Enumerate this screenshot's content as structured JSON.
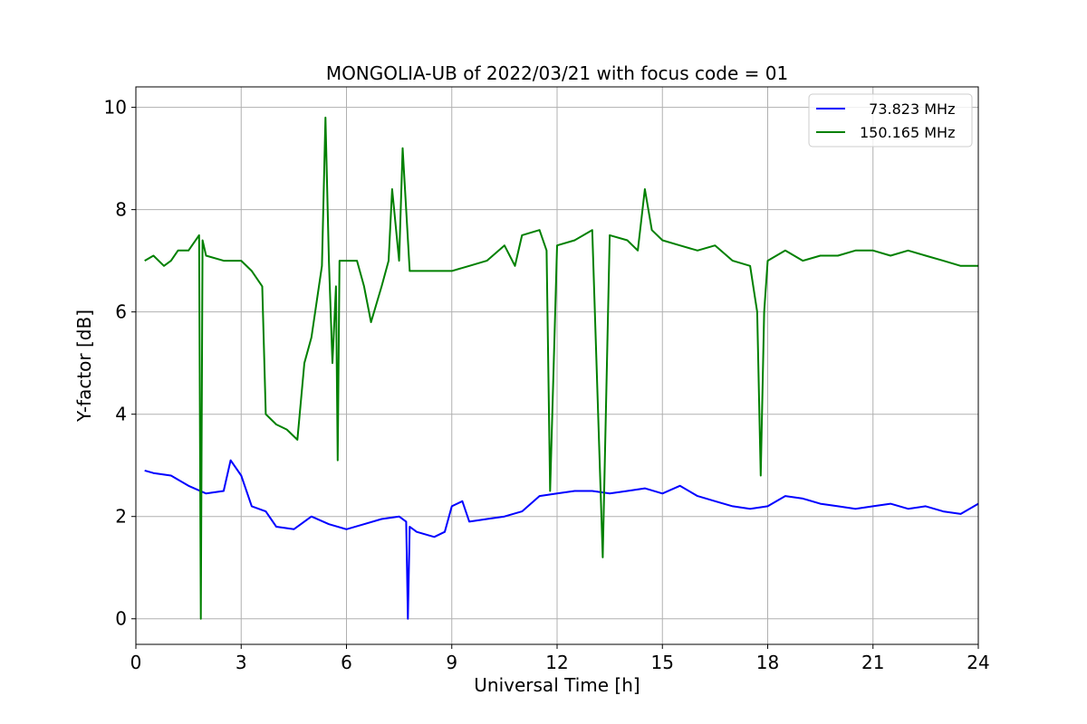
{
  "chart_data": {
    "type": "line",
    "title": "MONGOLIA-UB of 2022/03/21 with focus code = 01",
    "xlabel": "Universal Time [h]",
    "ylabel": "Y-factor [dB]",
    "xlim": [
      0,
      24
    ],
    "ylim": [
      -0.5,
      10.4
    ],
    "xticks": [
      0,
      3,
      6,
      9,
      12,
      15,
      18,
      21,
      24
    ],
    "yticks": [
      0,
      2,
      4,
      6,
      8,
      10
    ],
    "grid": true,
    "legend": "top-right",
    "series": [
      {
        "name": "  73.823 MHz",
        "color": "#0000ff",
        "x": [
          0.25,
          0.5,
          1.0,
          1.5,
          2.0,
          2.5,
          2.7,
          3.0,
          3.3,
          3.7,
          4.0,
          4.5,
          5.0,
          5.5,
          6.0,
          6.5,
          7.0,
          7.5,
          7.7,
          7.75,
          7.8,
          8.0,
          8.5,
          8.8,
          9.0,
          9.3,
          9.5,
          10.0,
          10.5,
          11.0,
          11.5,
          12.0,
          12.5,
          13.0,
          13.5,
          14.0,
          14.5,
          15.0,
          15.5,
          16.0,
          16.5,
          17.0,
          17.5,
          18.0,
          18.5,
          19.0,
          19.5,
          20.0,
          20.5,
          21.0,
          21.5,
          22.0,
          22.5,
          23.0,
          23.5,
          24.0
        ],
        "y": [
          2.9,
          2.85,
          2.8,
          2.6,
          2.45,
          2.5,
          3.1,
          2.8,
          2.2,
          2.1,
          1.8,
          1.75,
          2.0,
          1.85,
          1.75,
          1.85,
          1.95,
          2.0,
          1.9,
          0.0,
          1.8,
          1.7,
          1.6,
          1.7,
          2.2,
          2.3,
          1.9,
          1.95,
          2.0,
          2.1,
          2.4,
          2.45,
          2.5,
          2.5,
          2.45,
          2.5,
          2.55,
          2.45,
          2.6,
          2.4,
          2.3,
          2.2,
          2.15,
          2.2,
          2.4,
          2.35,
          2.25,
          2.2,
          2.15,
          2.2,
          2.25,
          2.15,
          2.2,
          2.1,
          2.05,
          2.25
        ]
      },
      {
        "name": "150.165 MHz",
        "color": "#008000",
        "x": [
          0.25,
          0.5,
          0.8,
          1.0,
          1.2,
          1.5,
          1.8,
          1.85,
          1.9,
          2.0,
          2.5,
          2.8,
          3.0,
          3.3,
          3.6,
          3.7,
          4.0,
          4.3,
          4.6,
          4.8,
          5.0,
          5.3,
          5.4,
          5.5,
          5.6,
          5.7,
          5.75,
          5.8,
          6.0,
          6.3,
          6.5,
          6.7,
          7.0,
          7.2,
          7.3,
          7.5,
          7.6,
          7.8,
          8.0,
          8.2,
          8.5,
          9.0,
          9.5,
          10.0,
          10.5,
          10.8,
          11.0,
          11.5,
          11.7,
          11.8,
          12.0,
          12.5,
          13.0,
          13.3,
          13.5,
          14.0,
          14.3,
          14.5,
          14.7,
          15.0,
          15.5,
          16.0,
          16.5,
          17.0,
          17.5,
          17.7,
          17.8,
          17.9,
          18.0,
          18.5,
          19.0,
          19.5,
          20.0,
          20.5,
          21.0,
          21.5,
          22.0,
          22.5,
          23.0,
          23.5,
          24.0
        ],
        "y": [
          7.0,
          7.1,
          6.9,
          7.0,
          7.2,
          7.2,
          7.5,
          0.0,
          7.4,
          7.1,
          7.0,
          7.0,
          7.0,
          6.8,
          6.5,
          4.0,
          3.8,
          3.7,
          3.5,
          5.0,
          5.5,
          6.9,
          9.8,
          7.0,
          5.0,
          6.5,
          3.1,
          7.0,
          7.0,
          7.0,
          6.5,
          5.8,
          6.5,
          7.0,
          8.4,
          7.0,
          9.2,
          6.8,
          6.8,
          6.8,
          6.8,
          6.8,
          6.9,
          7.0,
          7.3,
          6.9,
          7.5,
          7.6,
          7.2,
          2.5,
          7.3,
          7.4,
          7.6,
          1.2,
          7.5,
          7.4,
          7.2,
          8.4,
          7.6,
          7.4,
          7.3,
          7.2,
          7.3,
          7.0,
          6.9,
          6.0,
          2.8,
          6.0,
          7.0,
          7.2,
          7.0,
          7.1,
          7.1,
          7.2,
          7.2,
          7.1,
          7.2,
          7.1,
          7.0,
          6.9,
          6.9
        ]
      }
    ]
  }
}
